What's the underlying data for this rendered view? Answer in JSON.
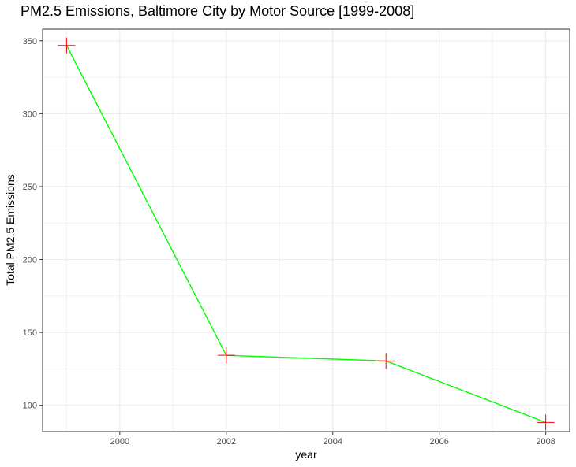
{
  "chart_data": {
    "type": "line",
    "title": "PM2.5 Emissions, Baltimore City by Motor Source [1999-2008]",
    "xlabel": "year",
    "ylabel": "Total PM2.5 Emissions",
    "x": [
      1999,
      2002,
      2005,
      2008
    ],
    "series": [
      {
        "values": [
          346.82,
          134.31,
          130.43,
          88.28
        ]
      }
    ],
    "xlim": [
      1998.55,
      2008.45
    ],
    "ylim": [
      82,
      358
    ],
    "x_ticks": [
      2000,
      2002,
      2004,
      2006,
      2008
    ],
    "x_tick_labels": [
      "2000",
      "2002",
      "2004",
      "2006",
      "2008"
    ],
    "y_ticks": [
      100,
      150,
      200,
      250,
      300,
      350
    ],
    "y_tick_labels": [
      "100",
      "150",
      "200",
      "250",
      "300",
      "350"
    ],
    "grid": true,
    "line_color": "#00ff00",
    "marker_color": "#ff0000",
    "marker": "plus"
  }
}
